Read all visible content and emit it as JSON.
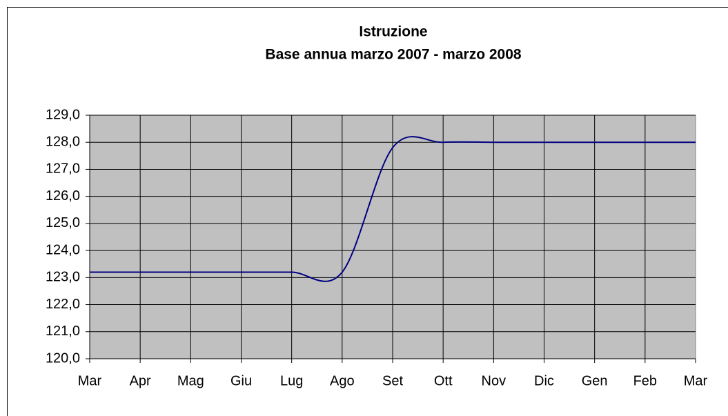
{
  "chart_data": {
    "type": "line",
    "title": "Istruzione",
    "subtitle": "Base annua marzo 2007 - marzo 2008",
    "categories": [
      "Mar",
      "Apr",
      "Mag",
      "Giu",
      "Lug",
      "Ago",
      "Set",
      "Ott",
      "Nov",
      "Dic",
      "Gen",
      "Feb",
      "Mar"
    ],
    "series": [
      {
        "name": "Istruzione",
        "color": "#000080",
        "values": [
          123.2,
          123.2,
          123.2,
          123.2,
          123.2,
          123.2,
          127.8,
          128.0,
          128.0,
          128.0,
          128.0,
          128.0,
          128.0
        ]
      }
    ],
    "ylim": [
      120,
      129
    ],
    "yticks": [
      {
        "value": 120,
        "label": "120,0"
      },
      {
        "value": 121,
        "label": "121,0"
      },
      {
        "value": 122,
        "label": "122,0"
      },
      {
        "value": 123,
        "label": "123,0"
      },
      {
        "value": 124,
        "label": "124,0"
      },
      {
        "value": 125,
        "label": "125,0"
      },
      {
        "value": 126,
        "label": "126,0"
      },
      {
        "value": 127,
        "label": "127,0"
      },
      {
        "value": 128,
        "label": "128,0"
      },
      {
        "value": 129,
        "label": "129,0"
      }
    ],
    "grid": true,
    "smooth": true,
    "plot_background": "#c0c0c0"
  }
}
